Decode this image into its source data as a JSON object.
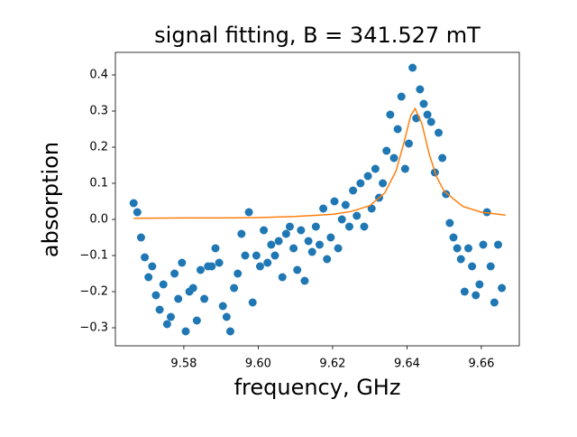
{
  "chart_data": {
    "type": "scatter",
    "title": "signal fitting, B = 341.527 mT",
    "x_label": "frequency, GHz",
    "y_label": "absorption",
    "xlim": [
      9.5616,
      9.6702
    ],
    "ylim": [
      -0.35,
      0.4625
    ],
    "xticks": [
      9.58,
      {
        "value": 9.6,
        "label": "9.60"
      },
      9.62,
      9.64,
      9.66
    ],
    "yticks": [
      {
        "value": -0.3,
        "label": "−0.3"
      },
      {
        "value": -0.2,
        "label": "−0.2"
      },
      {
        "value": -0.1,
        "label": "−0.1"
      },
      {
        "value": 0,
        "label": "0.0"
      },
      0.1,
      0.2,
      0.3,
      0.4
    ],
    "series": [
      {
        "type": "scatter",
        "color": "#1f77b4",
        "x": [
          9.5665,
          9.5675,
          9.5685,
          9.5695,
          9.5705,
          9.5715,
          9.5725,
          9.5735,
          9.5745,
          9.5755,
          9.5765,
          9.5775,
          9.5785,
          9.5795,
          9.5805,
          9.5815,
          9.5825,
          9.5835,
          9.5845,
          9.5855,
          9.5865,
          9.5875,
          9.5885,
          9.5895,
          9.5905,
          9.5915,
          9.5925,
          9.5935,
          9.5945,
          9.5955,
          9.5965,
          9.5975,
          9.5985,
          9.5995,
          9.6005,
          9.6015,
          9.6025,
          9.6035,
          9.6045,
          9.6055,
          9.6065,
          9.6075,
          9.6085,
          9.6095,
          9.6105,
          9.6115,
          9.6125,
          9.6135,
          9.6145,
          9.6155,
          9.6165,
          9.6175,
          9.6185,
          9.6195,
          9.6205,
          9.6215,
          9.6225,
          9.6235,
          9.6245,
          9.6255,
          9.6265,
          9.6275,
          9.6285,
          9.6295,
          9.6305,
          9.6315,
          9.6325,
          9.6335,
          9.6345,
          9.6355,
          9.6365,
          9.6375,
          9.6385,
          9.6395,
          9.6405,
          9.6415,
          9.6425,
          9.6435,
          9.6445,
          9.6455,
          9.6465,
          9.6475,
          9.6485,
          9.6495,
          9.6505,
          9.6515,
          9.6525,
          9.6535,
          9.6545,
          9.6555,
          9.6565,
          9.6575,
          9.6585,
          9.6595,
          9.6605,
          9.6615,
          9.6625,
          9.6635,
          9.6645,
          9.6655
        ],
        "values": [
          0.045,
          0.02,
          -0.05,
          -0.105,
          -0.16,
          -0.13,
          -0.21,
          -0.25,
          -0.18,
          -0.29,
          -0.27,
          -0.15,
          -0.22,
          -0.12,
          -0.31,
          -0.2,
          -0.19,
          -0.28,
          -0.14,
          -0.22,
          -0.13,
          -0.13,
          -0.08,
          -0.12,
          -0.24,
          -0.27,
          -0.31,
          -0.19,
          -0.15,
          -0.04,
          -0.1,
          0.02,
          -0.23,
          -0.1,
          -0.13,
          -0.03,
          -0.12,
          -0.07,
          -0.1,
          -0.06,
          -0.16,
          -0.04,
          -0.02,
          -0.08,
          -0.14,
          -0.03,
          -0.17,
          -0.06,
          -0.09,
          -0.02,
          -0.07,
          0.03,
          -0.11,
          -0.05,
          0.05,
          -0.08,
          0,
          0.04,
          -0.02,
          0.08,
          0.01,
          0.1,
          -0.02,
          0.12,
          0.03,
          0.14,
          0.06,
          0.1,
          0.19,
          0.29,
          0.17,
          0.25,
          0.34,
          0.14,
          0.21,
          0.42,
          0.28,
          0.36,
          0.32,
          0.29,
          0.27,
          0.13,
          0.24,
          0.17,
          0.07,
          -0.01,
          -0.05,
          -0.08,
          -0.11,
          -0.2,
          -0.08,
          -0.13,
          -0.21,
          -0.18,
          -0.07,
          0.02,
          -0.13,
          -0.23,
          -0.07,
          -0.19
        ]
      },
      {
        "type": "line",
        "color": "#ff7f0e",
        "x": [
          9.5665,
          9.58,
          9.59,
          9.6,
          9.61,
          9.62,
          9.625,
          9.63,
          9.634,
          9.637,
          9.639,
          9.641,
          9.6422,
          9.644,
          9.646,
          9.648,
          9.65,
          9.655,
          9.66,
          9.6665
        ],
        "values": [
          0.003,
          0.004,
          0.004,
          0.005,
          0.008,
          0.014,
          0.022,
          0.038,
          0.073,
          0.133,
          0.205,
          0.287,
          0.307,
          0.265,
          0.18,
          0.117,
          0.078,
          0.036,
          0.02,
          0.012
        ]
      }
    ]
  }
}
